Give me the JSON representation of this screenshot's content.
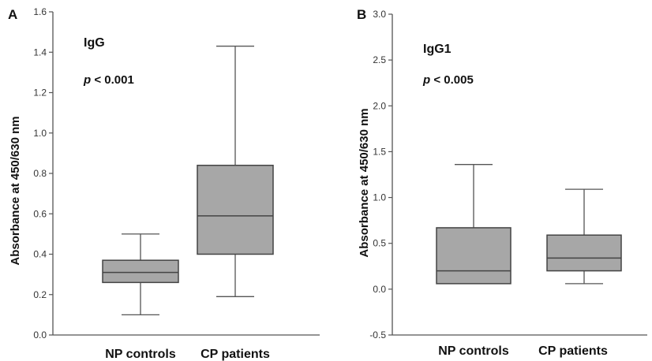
{
  "colors": {
    "box_fill": "#a7a7a7",
    "box_stroke": "#444444",
    "axis": "#555555"
  },
  "chart_data": [
    {
      "type": "box",
      "panel_label": "A",
      "title": "IgG",
      "p_prefix": "p",
      "p_rest": " < 0.001",
      "xlabel": "",
      "ylabel": "Absorbance at 450/630 nm",
      "ylim": [
        0.0,
        1.6
      ],
      "yticks": [
        "0.0",
        "0.2",
        "0.4",
        "0.6",
        "0.8",
        "1.0",
        "1.2",
        "1.4",
        "1.6"
      ],
      "categories": [
        "NP controls",
        "CP patients"
      ],
      "boxes": [
        {
          "name": "NP controls",
          "min": 0.1,
          "q1": 0.26,
          "median": 0.31,
          "q3": 0.37,
          "max": 0.5
        },
        {
          "name": "CP patients",
          "min": 0.19,
          "q1": 0.4,
          "median": 0.59,
          "q3": 0.84,
          "max": 1.43
        }
      ],
      "grid": false
    },
    {
      "type": "box",
      "panel_label": "B",
      "title": "IgG1",
      "p_prefix": "p",
      "p_rest": " < 0.005",
      "xlabel": "",
      "ylabel": "Absorbance at 450/630 nm",
      "ylim": [
        -0.5,
        3.0
      ],
      "yticks": [
        "-0.5",
        "0.0",
        "0.5",
        "1.0",
        "1.5",
        "2.0",
        "2.5",
        "3.0"
      ],
      "categories": [
        "NP controls",
        "CP patients"
      ],
      "boxes": [
        {
          "name": "NP controls",
          "min": 0.06,
          "q1": 0.06,
          "median": 0.2,
          "q3": 0.67,
          "max": 1.36
        },
        {
          "name": "CP patients",
          "min": 0.06,
          "q1": 0.2,
          "median": 0.34,
          "q3": 0.59,
          "max": 1.09
        }
      ],
      "grid": false
    }
  ]
}
